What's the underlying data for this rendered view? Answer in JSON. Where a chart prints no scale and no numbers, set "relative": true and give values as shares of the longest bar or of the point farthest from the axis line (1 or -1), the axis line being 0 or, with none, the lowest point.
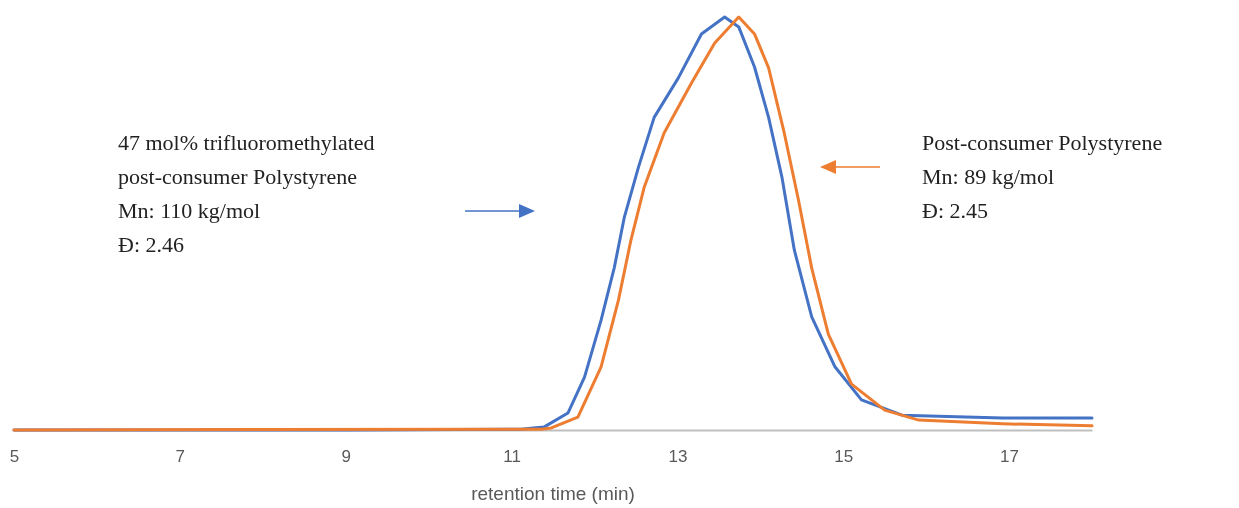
{
  "chart_data": {
    "type": "line",
    "relative": true,
    "xlabel": "retention time (min)",
    "xlim": [
      5,
      18
    ],
    "xticks": [
      5,
      7,
      9,
      11,
      13,
      15,
      17
    ],
    "grid": false,
    "marker": "none",
    "line_style": "solid",
    "annotations": [
      "47 mol% trifluoromethylated\npost-consumer Polystyrene\nMn: 110 kg/mol\nĐ: 2.46",
      "Post-consumer Polystyrene\nMn: 89 kg/mol\nĐ: 2.45"
    ],
    "series": [
      {
        "color": "#4472c4",
        "x": [
          5,
          9.06,
          11.11,
          11.39,
          11.68,
          11.88,
          12.08,
          12.24,
          12.36,
          12.53,
          12.72,
          13.01,
          13.29,
          13.57,
          13.74,
          13.93,
          14.1,
          14.26,
          14.41,
          14.62,
          14.9,
          15.22,
          15.71,
          16.92,
          18
        ],
        "values": [
          0,
          0,
          0.002,
          0.007,
          0.041,
          0.128,
          0.266,
          0.394,
          0.515,
          0.636,
          0.757,
          0.852,
          0.959,
          1.0,
          0.976,
          0.879,
          0.757,
          0.613,
          0.436,
          0.274,
          0.153,
          0.073,
          0.036,
          0.029,
          0.029
        ]
      },
      {
        "color": "#ed7d31",
        "x": [
          5,
          11.36,
          11.48,
          11.8,
          12.08,
          12.29,
          12.44,
          12.6,
          12.84,
          13.17,
          13.45,
          13.74,
          13.93,
          14.1,
          14.29,
          14.46,
          14.62,
          14.82,
          15.1,
          15.5,
          15.91,
          16.92,
          18
        ],
        "values": [
          0,
          0.002,
          0.005,
          0.031,
          0.153,
          0.315,
          0.46,
          0.588,
          0.719,
          0.84,
          0.937,
          1.0,
          0.959,
          0.877,
          0.718,
          0.557,
          0.392,
          0.232,
          0.111,
          0.048,
          0.024,
          0.015,
          0.01
        ]
      }
    ]
  }
}
